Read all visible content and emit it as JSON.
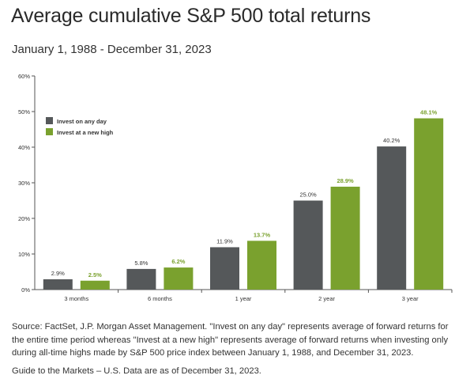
{
  "title": "Average cumulative S&P 500 total returns",
  "subtitle": "January 1, 1988 - December 31, 2023",
  "source_text": "Source: FactSet, J.P. Morgan Asset Management. \"Invest on any day\" represents average of forward returns for the entire time period whereas \"Invest at a new high\" represents average of forward returns when investing only during all-time highs made by S&P 500 price index between January 1, 1988, and December 31, 2023.",
  "note_text": "Guide to the Markets – U.S. Data are as of December 31, 2023.",
  "chart_data": {
    "type": "bar",
    "title": "",
    "xlabel": "",
    "ylabel": "",
    "categories": [
      "3 months",
      "6 months",
      "1 year",
      "2 year",
      "3 year"
    ],
    "series": [
      {
        "name": "Invest on any day",
        "color": "#55585a",
        "values": [
          2.9,
          5.8,
          11.9,
          25.0,
          40.2
        ],
        "labels": [
          "2.9%",
          "5.8%",
          "11.9%",
          "25.0%",
          "40.2%"
        ]
      },
      {
        "name": "Invest at a new high",
        "color": "#7aa12e",
        "values": [
          2.5,
          6.2,
          13.7,
          28.9,
          48.1
        ],
        "labels": [
          "2.5%",
          "6.2%",
          "13.7%",
          "28.9%",
          "48.1%"
        ]
      }
    ],
    "ylim": [
      0,
      60
    ],
    "yticks": [
      0,
      10,
      20,
      30,
      40,
      50,
      60
    ],
    "ytick_labels": [
      "0%",
      "10%",
      "20%",
      "30%",
      "40%",
      "50%",
      "60%"
    ],
    "grid": false,
    "legend_position": "top-left",
    "label_colors": {
      "invest_on_any_day": "#333333",
      "invest_at_a_new_high": "#7aa12e"
    }
  }
}
